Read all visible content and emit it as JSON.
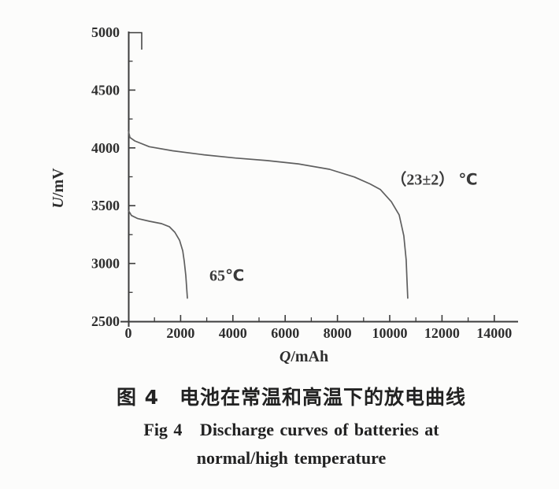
{
  "figure": {
    "caption_cn": "图 4　电池在常温和高温下的放电曲线",
    "caption_en_line1": "Fig 4   Discharge curves of batteries at",
    "caption_en_line2": "normal/high temperature"
  },
  "chart_data": {
    "type": "line",
    "title": "",
    "xlabel": "Q/mAh",
    "ylabel": "U/mV",
    "xlim": [
      0,
      14900
    ],
    "ylim": [
      2500,
      5000
    ],
    "grid": false,
    "legend_position": "none",
    "x_ticks": [
      0,
      2000,
      4000,
      6000,
      8000,
      10000,
      12000,
      14000
    ],
    "x_minor_ticks": [
      1000,
      3000,
      5000,
      7000,
      9000,
      11000,
      13000
    ],
    "y_ticks": [
      2500,
      3000,
      3500,
      4000,
      4500,
      5000
    ],
    "y_minor_ticks": [
      2750,
      3250,
      3750,
      4250,
      4750
    ],
    "ink_color": "#3c3c3c",
    "curve_color": "#5f5f5f",
    "series": [
      {
        "name": "normal-temperature",
        "label": "（23±2） ℃",
        "points": [
          [
            0,
            4150
          ],
          [
            60,
            4090
          ],
          [
            250,
            4060
          ],
          [
            800,
            4010
          ],
          [
            1700,
            3975
          ],
          [
            2900,
            3940
          ],
          [
            4100,
            3912
          ],
          [
            5300,
            3890
          ],
          [
            6500,
            3862
          ],
          [
            7700,
            3815
          ],
          [
            8650,
            3748
          ],
          [
            9250,
            3688
          ],
          [
            9640,
            3640
          ],
          [
            10060,
            3535
          ],
          [
            10360,
            3420
          ],
          [
            10540,
            3240
          ],
          [
            10630,
            3030
          ],
          [
            10660,
            2860
          ],
          [
            10690,
            2700
          ]
        ]
      },
      {
        "name": "high-temperature",
        "label": "65℃",
        "points": [
          [
            0,
            3460
          ],
          [
            120,
            3415
          ],
          [
            360,
            3388
          ],
          [
            810,
            3365
          ],
          [
            1270,
            3345
          ],
          [
            1570,
            3318
          ],
          [
            1780,
            3270
          ],
          [
            1960,
            3200
          ],
          [
            2080,
            3110
          ],
          [
            2140,
            3020
          ],
          [
            2200,
            2895
          ],
          [
            2260,
            2700
          ]
        ]
      }
    ],
    "annotations": [
      {
        "series": "normal-temperature",
        "text": "（23±2） ℃",
        "at": [
          11700,
          3730
        ]
      },
      {
        "series": "high-temperature",
        "text": "65℃",
        "at": [
          3770,
          2900
        ]
      }
    ]
  }
}
